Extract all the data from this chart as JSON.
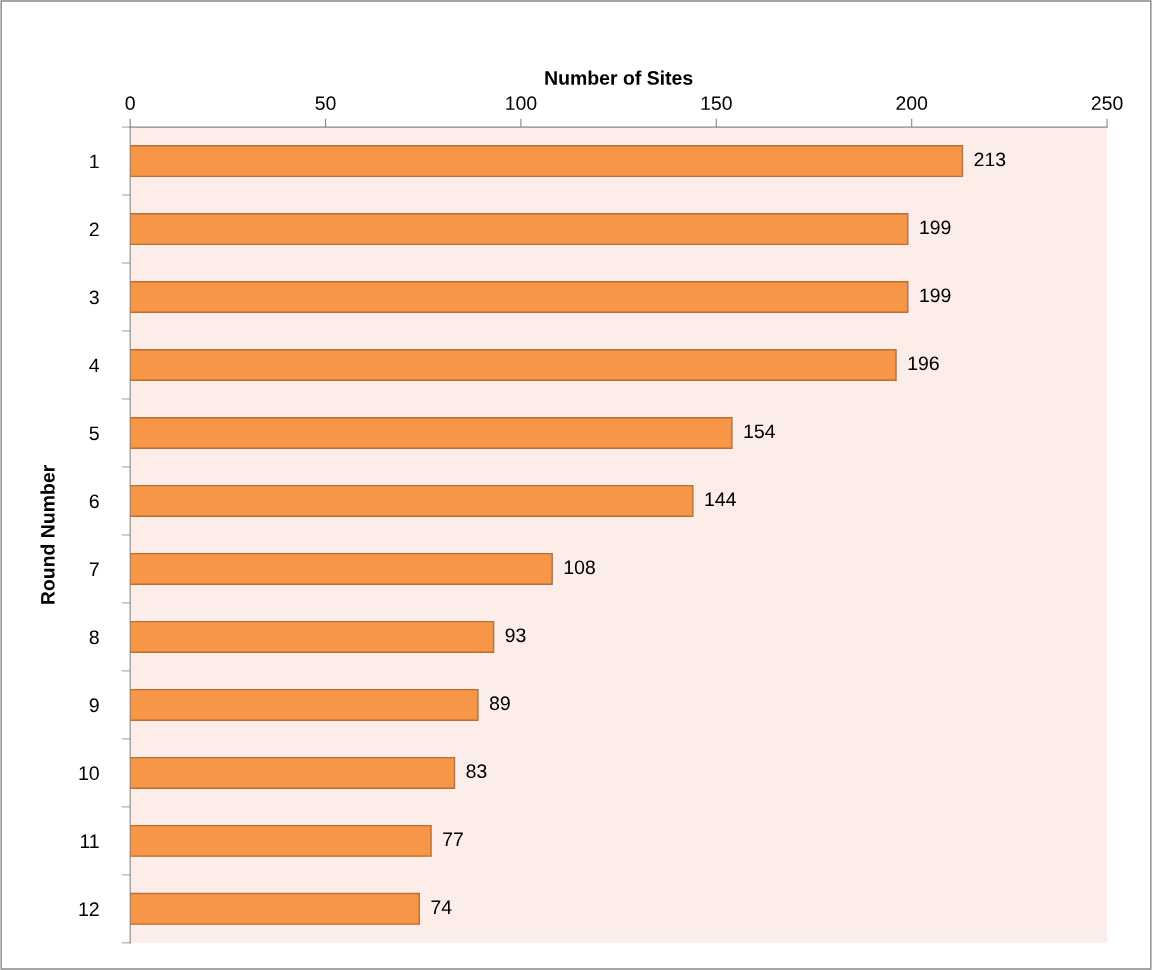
{
  "chart_data": {
    "type": "bar",
    "orientation": "horizontal",
    "xlabel": "Number of Sites",
    "ylabel": "Round Number",
    "categories": [
      "1",
      "2",
      "3",
      "4",
      "5",
      "6",
      "7",
      "8",
      "9",
      "10",
      "11",
      "12"
    ],
    "values": [
      213,
      199,
      199,
      196,
      154,
      144,
      108,
      93,
      89,
      83,
      77,
      74
    ],
    "color": "#f79646",
    "xlim": [
      0,
      250
    ],
    "xticks": [
      0,
      50,
      100,
      150,
      200,
      250
    ],
    "grid": false,
    "data_labels": true
  }
}
